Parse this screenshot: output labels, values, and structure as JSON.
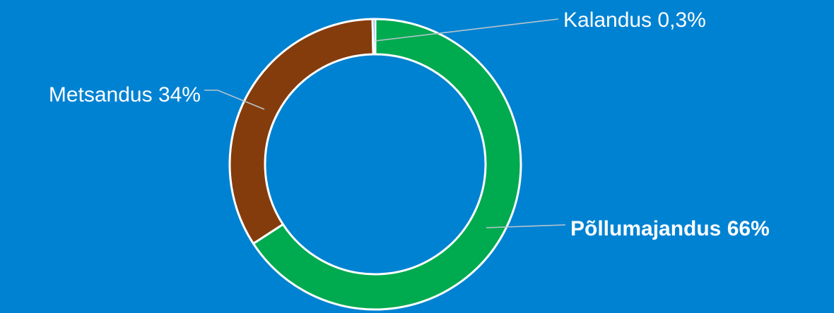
{
  "chart_data": {
    "type": "pie",
    "variant": "donut",
    "title": "",
    "categories": [
      "Põllumajandus",
      "Metsandus",
      "Kalandus"
    ],
    "values": [
      66,
      34,
      0.3
    ],
    "unit": "%",
    "colors": [
      "#00AA4F",
      "#843C0C",
      "#0082D2"
    ],
    "slice_border_color": "#FFFFFF",
    "background_color": "#0082D2",
    "labels": [
      {
        "text": "Põllumajandus 66%",
        "bold": true
      },
      {
        "text": "Metsandus 34%",
        "bold": false
      },
      {
        "text": "Kalandus 0,3%",
        "bold": false
      }
    ],
    "legend": "none"
  }
}
